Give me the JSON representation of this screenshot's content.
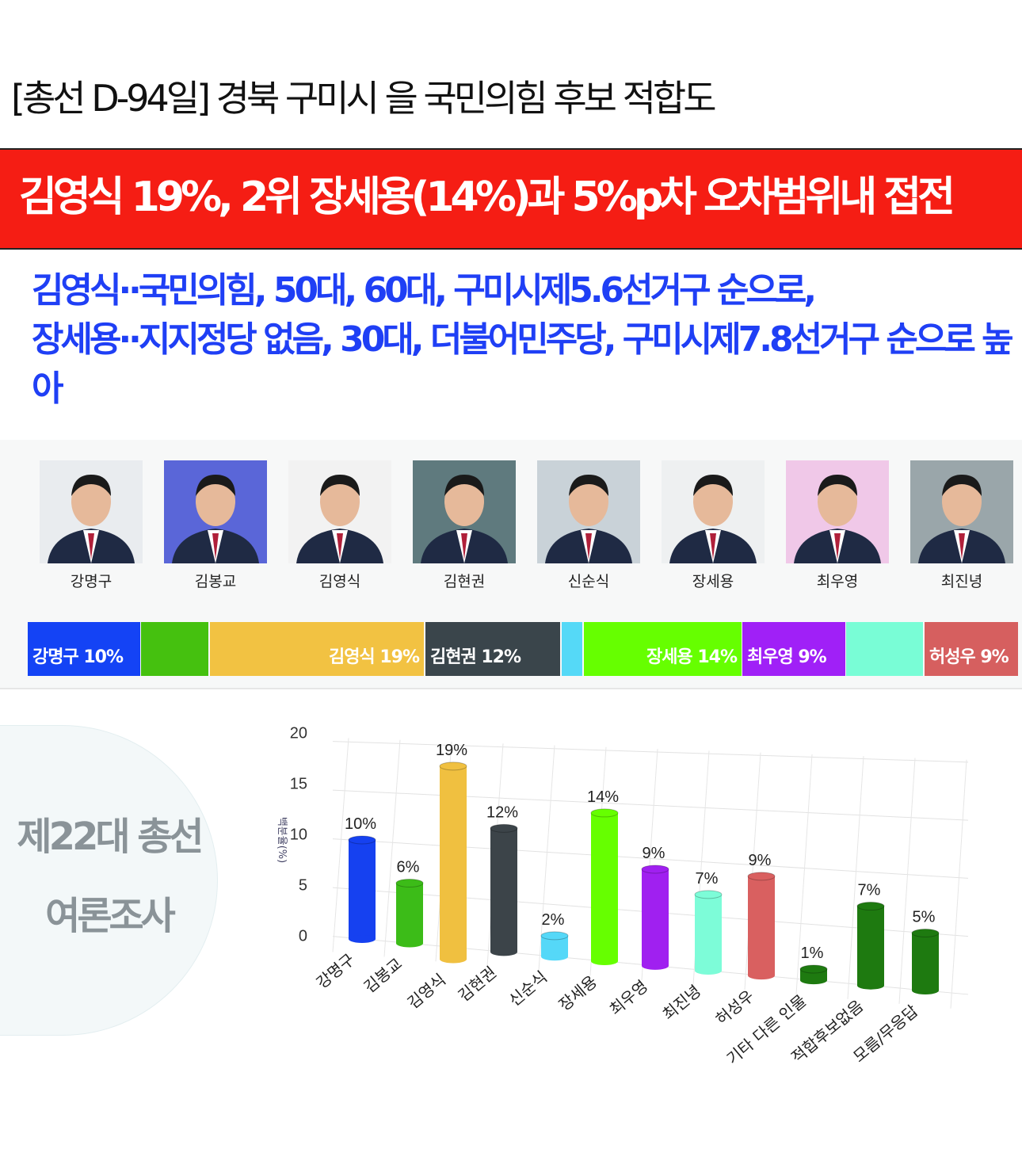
{
  "title": "[총선 D-94일] 경북 구미시 을 국민의힘 후보 적합도",
  "headline": "김영식 19%, 2위 장세용(14%)과 5%p차 오차범위내 접전",
  "subtitle": [
    "김영식··국민의힘, 50대, 60대, 구미시제5.6선거구 순으로,",
    "장세용··지지정당 없음, 30대, 더불어민주당, 구미시제7.8선거구 순으로 높아"
  ],
  "candidates": [
    {
      "name": "강명구",
      "bg": "#e9ecef"
    },
    {
      "name": "김봉교",
      "bg": "#5a66d8"
    },
    {
      "name": "김영식",
      "bg": "#f2f2f2"
    },
    {
      "name": "김현권",
      "bg": "#5f7a7e"
    },
    {
      "name": "신순식",
      "bg": "#c9d2d8"
    },
    {
      "name": "장세용",
      "bg": "#eef0f1"
    },
    {
      "name": "최우영",
      "bg": "#f0c8e8"
    },
    {
      "name": "최진녕",
      "bg": "#9aa6aa"
    }
  ],
  "stack": [
    {
      "label": "강명구 10%",
      "color": "#1443f5"
    },
    {
      "label": "",
      "color": "#45c10f"
    },
    {
      "label": "김영식 19%",
      "color": "#f2c242"
    },
    {
      "label": "김현권 12%",
      "color": "#3a454b"
    },
    {
      "label": "",
      "color": "#55d9f7"
    },
    {
      "label": "장세용 14%",
      "color": "#66ff00"
    },
    {
      "label": "최우영 9%",
      "color": "#a020f7"
    },
    {
      "label": "",
      "color": "#79fdd6"
    },
    {
      "label": "허성우 9%",
      "color": "#d65f5f"
    }
  ],
  "badge": [
    "제22대 총선",
    "여론조사"
  ],
  "chart_data": {
    "type": "bar",
    "title": "",
    "ylabel": "백분율(%)",
    "ylim": [
      0,
      20
    ],
    "yticks": [
      0,
      5,
      10,
      15,
      20
    ],
    "categories": [
      "강명구",
      "김봉교",
      "김영식",
      "김현권",
      "신순식",
      "장세용",
      "최우영",
      "최진녕",
      "허성우",
      "기타 다른 인물",
      "적합후보없음",
      "모름/무응답"
    ],
    "values": [
      10,
      6,
      19,
      12,
      2,
      14,
      9,
      7,
      9,
      1,
      7,
      5
    ],
    "data_labels": [
      "10%",
      "6%",
      "19%",
      "12%",
      "2%",
      "14%",
      "9%",
      "7%",
      "9%",
      "1%",
      "7%",
      "5%"
    ],
    "colors": [
      "#1641f0",
      "#3cbc18",
      "#f0c040",
      "#3c4449",
      "#55d8f8",
      "#66ff00",
      "#a020f0",
      "#7dfcd8",
      "#d96060",
      "#1e7a10",
      "#1e7a10",
      "#1e7a10"
    ],
    "grid": true
  }
}
